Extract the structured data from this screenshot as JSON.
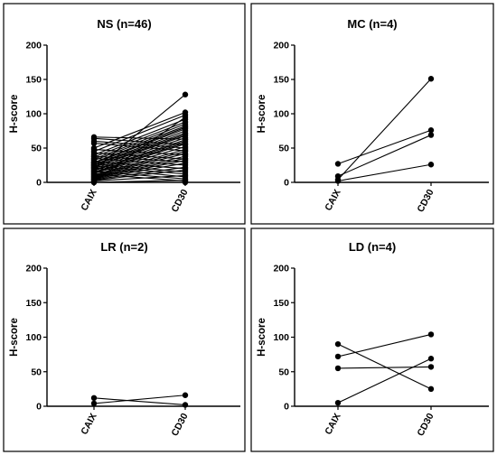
{
  "chart_data": [
    {
      "type": "line",
      "title": "NS (n=46)",
      "ylabel": "H-score",
      "categories": [
        "CAIX",
        "CD30"
      ],
      "yticks": [
        0,
        50,
        100,
        150,
        200
      ],
      "ylim": [
        0,
        200
      ],
      "series": [
        {
          "values": [
            66,
            63
          ]
        },
        {
          "values": [
            64,
            55
          ]
        },
        {
          "values": [
            60,
            50
          ]
        },
        {
          "values": [
            57,
            46
          ]
        },
        {
          "values": [
            50,
            102
          ]
        },
        {
          "values": [
            48,
            40
          ]
        },
        {
          "values": [
            45,
            98
          ]
        },
        {
          "values": [
            43,
            34
          ]
        },
        {
          "values": [
            40,
            92
          ]
        },
        {
          "values": [
            38,
            30
          ]
        },
        {
          "values": [
            37,
            88
          ]
        },
        {
          "values": [
            35,
            25
          ]
        },
        {
          "values": [
            34,
            85
          ]
        },
        {
          "values": [
            32,
            82
          ]
        },
        {
          "values": [
            30,
            20
          ]
        },
        {
          "values": [
            29,
            80
          ]
        },
        {
          "values": [
            28,
            78
          ]
        },
        {
          "values": [
            27,
            15
          ]
        },
        {
          "values": [
            26,
            75
          ]
        },
        {
          "values": [
            25,
            72
          ]
        },
        {
          "values": [
            24,
            12
          ]
        },
        {
          "values": [
            23,
            70
          ]
        },
        {
          "values": [
            22,
            68
          ]
        },
        {
          "values": [
            21,
            8
          ]
        },
        {
          "values": [
            20,
            65
          ]
        },
        {
          "values": [
            19,
            128
          ]
        },
        {
          "values": [
            18,
            62
          ]
        },
        {
          "values": [
            17,
            60
          ]
        },
        {
          "values": [
            16,
            5
          ]
        },
        {
          "values": [
            15,
            58
          ]
        },
        {
          "values": [
            14,
            56
          ]
        },
        {
          "values": [
            13,
            52
          ]
        },
        {
          "values": [
            12,
            2
          ]
        },
        {
          "values": [
            11,
            48
          ]
        },
        {
          "values": [
            10,
            45
          ]
        },
        {
          "values": [
            9,
            42
          ]
        },
        {
          "values": [
            8,
            38
          ]
        },
        {
          "values": [
            7,
            35
          ]
        },
        {
          "values": [
            6,
            32
          ]
        },
        {
          "values": [
            5,
            28
          ]
        },
        {
          "values": [
            4,
            22
          ]
        },
        {
          "values": [
            3,
            18
          ]
        },
        {
          "values": [
            2,
            10
          ]
        },
        {
          "values": [
            1,
            95
          ]
        },
        {
          "values": [
            0,
            0
          ]
        },
        {
          "values": [
            0,
            3
          ]
        }
      ]
    },
    {
      "type": "line",
      "title": "MC (n=4)",
      "ylabel": "H-score",
      "categories": [
        "CAIX",
        "CD30"
      ],
      "yticks": [
        0,
        50,
        100,
        150,
        200
      ],
      "ylim": [
        0,
        200
      ],
      "series": [
        {
          "values": [
            27,
            76
          ]
        },
        {
          "values": [
            9,
            69
          ]
        },
        {
          "values": [
            4,
            151
          ]
        },
        {
          "values": [
            2,
            26
          ]
        }
      ]
    },
    {
      "type": "line",
      "title": "LR (n=2)",
      "ylabel": "H-score",
      "categories": [
        "CAIX",
        "CD30"
      ],
      "yticks": [
        0,
        50,
        100,
        150,
        200
      ],
      "ylim": [
        0,
        200
      ],
      "series": [
        {
          "values": [
            12,
            2
          ]
        },
        {
          "values": [
            4,
            16
          ]
        }
      ]
    },
    {
      "type": "line",
      "title": "LD (n=4)",
      "ylabel": "H-score",
      "categories": [
        "CAIX",
        "CD30"
      ],
      "yticks": [
        0,
        50,
        100,
        150,
        200
      ],
      "ylim": [
        0,
        200
      ],
      "series": [
        {
          "values": [
            90,
            25
          ]
        },
        {
          "values": [
            72,
            104
          ]
        },
        {
          "values": [
            55,
            57
          ]
        },
        {
          "values": [
            5,
            69
          ]
        }
      ]
    }
  ]
}
